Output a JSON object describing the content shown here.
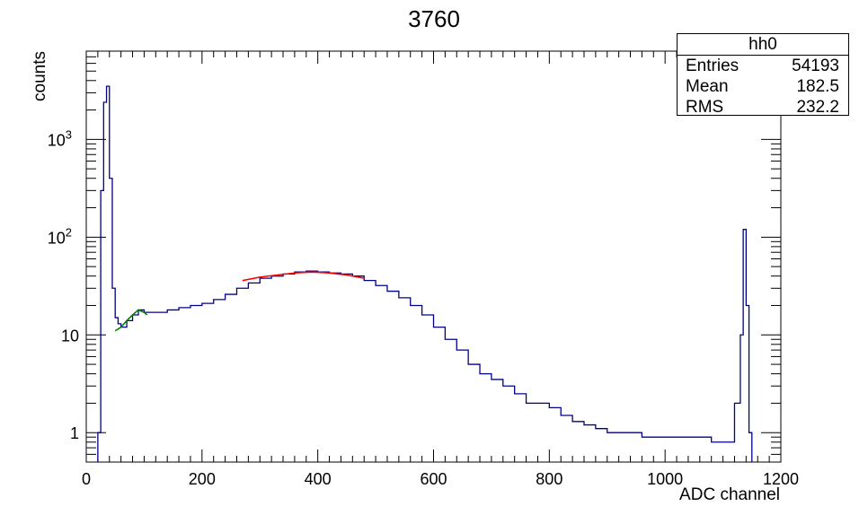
{
  "chart_data": {
    "type": "histogram",
    "title": "3760",
    "xlabel": "ADC channel",
    "ylabel": "counts",
    "xlim": [
      0,
      1200
    ],
    "ylim": [
      0.5,
      8000
    ],
    "yscale": "log",
    "grid": false,
    "xticks": [
      0,
      200,
      400,
      600,
      800,
      1000,
      1200
    ],
    "yticks": [
      {
        "value": 1,
        "label": "1"
      },
      {
        "value": 10,
        "label": "10"
      },
      {
        "value": 100,
        "label": "10",
        "exp": "2"
      },
      {
        "value": 1000,
        "label": "10",
        "exp": "3"
      }
    ],
    "histogram_color": "#00008b",
    "stats_box": {
      "name": "hh0",
      "rows": [
        {
          "key": "Entries",
          "value": "54193"
        },
        {
          "key": "Mean",
          "value": "182.5"
        },
        {
          "key": "RMS",
          "value": "232.2"
        }
      ]
    },
    "series": [
      {
        "color": "#00008b",
        "style": "step",
        "x": [
          20,
          25,
          30,
          35,
          40,
          45,
          50,
          55,
          60,
          70,
          80,
          90,
          100,
          120,
          140,
          160,
          180,
          200,
          220,
          240,
          260,
          280,
          300,
          320,
          340,
          360,
          380,
          400,
          420,
          440,
          460,
          480,
          500,
          520,
          540,
          560,
          580,
          600,
          620,
          640,
          660,
          680,
          700,
          720,
          740,
          760,
          780,
          800,
          820,
          840,
          860,
          880,
          900,
          920,
          940,
          960,
          980,
          1000,
          1020,
          1040,
          1060,
          1080,
          1100,
          1120,
          1130,
          1135,
          1140,
          1145,
          1150
        ],
        "y": [
          1,
          300,
          2400,
          3500,
          400,
          30,
          15,
          13,
          12,
          14,
          16,
          18,
          17,
          17,
          18,
          19,
          20,
          21,
          23,
          26,
          30,
          34,
          38,
          40,
          42,
          44,
          45,
          44,
          43,
          42,
          40,
          36,
          32,
          28,
          24,
          20,
          16,
          12,
          9,
          7,
          5,
          4,
          3.5,
          3,
          2.5,
          2,
          2,
          1.8,
          1.5,
          1.3,
          1.2,
          1.1,
          1.0,
          1.0,
          1.0,
          0.9,
          0.9,
          0.9,
          0.9,
          0.9,
          0.9,
          0.8,
          0.8,
          2,
          10,
          120,
          20,
          1,
          0.5
        ]
      },
      {
        "color": "#008000",
        "style": "line",
        "x": [
          50,
          60,
          70,
          80,
          90,
          100,
          105
        ],
        "y": [
          11,
          12,
          14,
          16,
          18,
          17,
          16
        ]
      },
      {
        "color": "#ff0000",
        "style": "line",
        "x": [
          270,
          300,
          330,
          360,
          390,
          420,
          450,
          480
        ],
        "y": [
          36,
          39,
          41,
          43,
          44,
          43,
          41,
          38
        ]
      }
    ]
  }
}
